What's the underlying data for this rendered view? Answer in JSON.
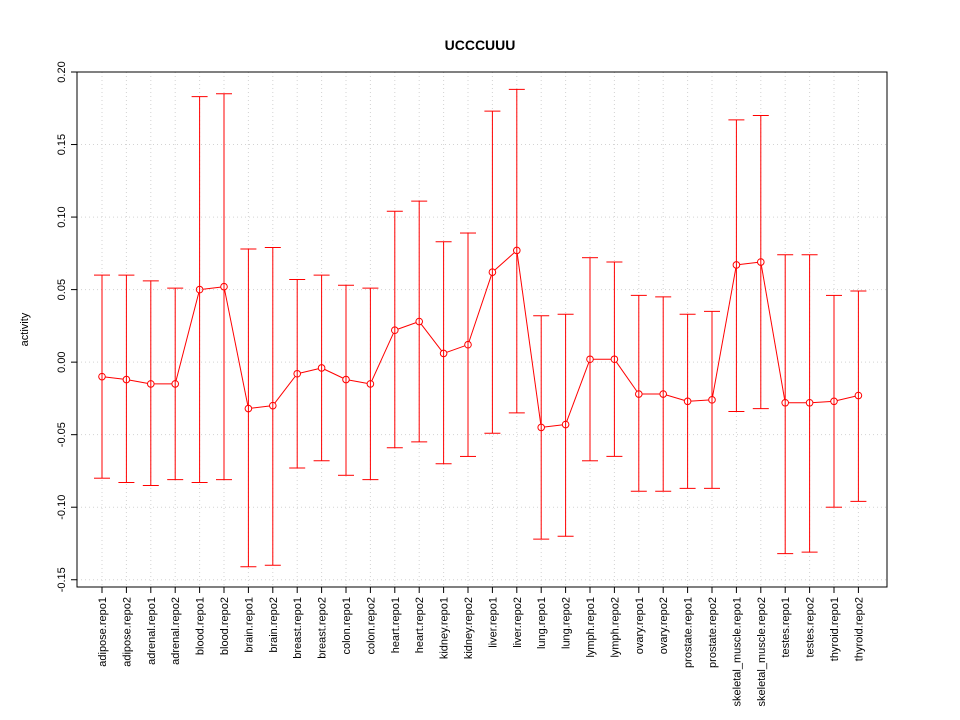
{
  "chart_data": {
    "type": "line",
    "title": "UCCCUUU",
    "xlabel": "",
    "ylabel": "activity",
    "ylim": [
      -0.155,
      0.2
    ],
    "yticks": [
      "0.20",
      "0.15",
      "0.10",
      "0.05",
      "0.00",
      "-0.05",
      "-0.10",
      "-0.15"
    ],
    "ytick_values": [
      0.2,
      0.15,
      0.1,
      0.05,
      0.0,
      -0.05,
      -0.1,
      -0.15
    ],
    "grid": true,
    "series_color": "#ff0000",
    "grid_color": "#d3d3d3",
    "categories": [
      "adipose.repo1",
      "adipose.repo2",
      "adrenal.repo1",
      "adrenal.repo2",
      "blood.repo1",
      "blood.repo2",
      "brain.repo1",
      "brain.repo2",
      "breast.repo1",
      "breast.repo2",
      "colon.repo1",
      "colon.repo2",
      "heart.repo1",
      "heart.repo2",
      "kidney.repo1",
      "kidney.repo2",
      "liver.repo1",
      "liver.repo2",
      "lung.repo1",
      "lung.repo2",
      "lymph.repo1",
      "lymph.repo2",
      "ovary.repo1",
      "ovary.repo2",
      "prostate.repo1",
      "prostate.repo2",
      "skeletal_muscle.repo1",
      "skeletal_muscle.repo2",
      "testes.repo1",
      "testes.repo2",
      "thyroid.repo1",
      "thyroid.repo2"
    ],
    "values": [
      -0.01,
      -0.012,
      -0.015,
      -0.015,
      0.05,
      0.052,
      -0.032,
      -0.03,
      -0.008,
      -0.004,
      -0.012,
      -0.015,
      0.022,
      0.028,
      0.006,
      0.012,
      0.062,
      0.077,
      -0.045,
      -0.043,
      0.002,
      0.002,
      -0.022,
      -0.022,
      -0.027,
      -0.026,
      0.067,
      0.069,
      -0.028,
      -0.028,
      -0.027,
      -0.023
    ],
    "upper": [
      0.06,
      0.06,
      0.056,
      0.051,
      0.183,
      0.185,
      0.078,
      0.079,
      0.057,
      0.06,
      0.053,
      0.051,
      0.104,
      0.111,
      0.083,
      0.089,
      0.173,
      0.188,
      0.032,
      0.033,
      0.072,
      0.069,
      0.046,
      0.045,
      0.033,
      0.035,
      0.167,
      0.17,
      0.074,
      0.074,
      0.046,
      0.049
    ],
    "lower": [
      -0.08,
      -0.083,
      -0.085,
      -0.081,
      -0.083,
      -0.081,
      -0.141,
      -0.14,
      -0.073,
      -0.068,
      -0.078,
      -0.081,
      -0.059,
      -0.055,
      -0.07,
      -0.065,
      -0.049,
      -0.035,
      -0.122,
      -0.12,
      -0.068,
      -0.065,
      -0.089,
      -0.089,
      -0.087,
      -0.087,
      -0.034,
      -0.032,
      -0.132,
      -0.131,
      -0.1,
      -0.096
    ]
  }
}
